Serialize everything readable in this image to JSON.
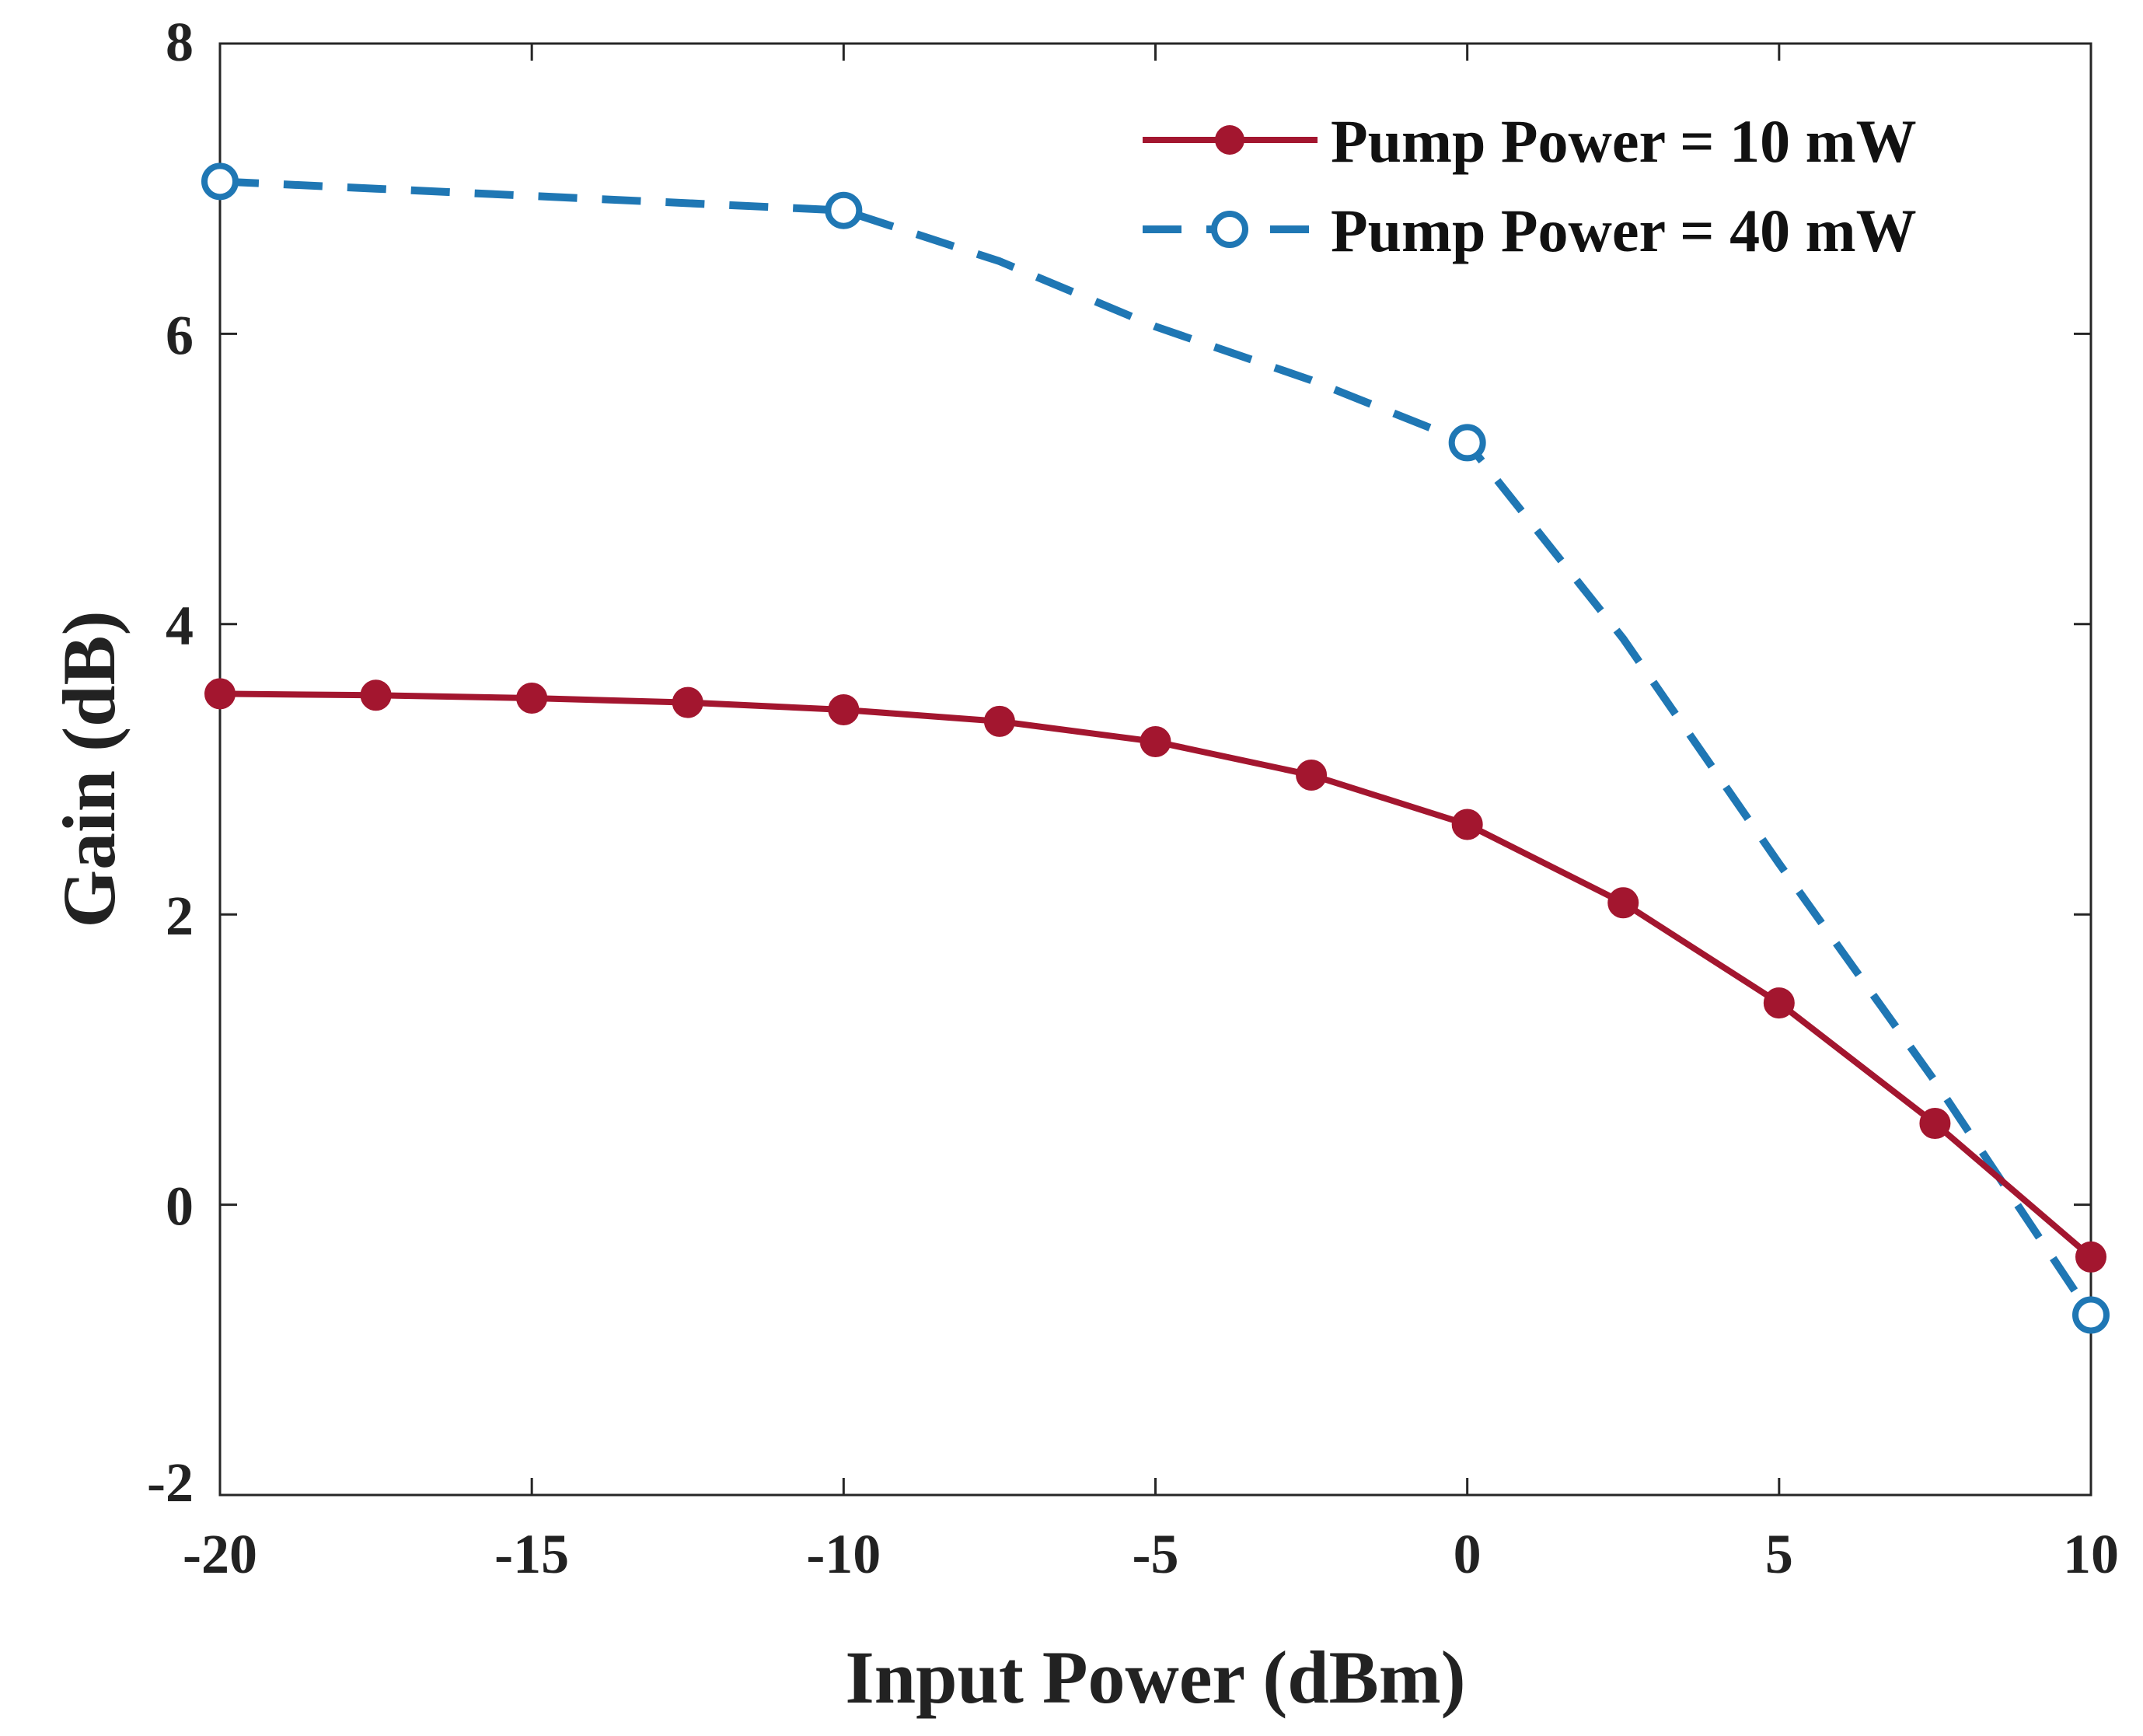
{
  "chart_data": {
    "type": "line",
    "xlabel": "Input Power (dBm)",
    "ylabel": "Gain (dB)",
    "xlim": [
      -20,
      10
    ],
    "ylim": [
      -2,
      8
    ],
    "xticks": [
      -20,
      -15,
      -10,
      -5,
      0,
      5,
      10
    ],
    "yticks": [
      -2,
      0,
      2,
      4,
      6,
      8
    ],
    "xtick_labels": [
      "-20",
      "-15",
      "-10",
      "-5",
      "0",
      "5",
      "10"
    ],
    "ytick_labels": [
      "-2",
      "0",
      "2",
      "4",
      "6",
      "8"
    ],
    "grid": false,
    "legend_position": "top-right",
    "series": [
      {
        "name": "Pump Power = 10 mW",
        "color": "#A3162F",
        "line_style": "solid",
        "marker": "filled-circle",
        "x": [
          -20,
          -17.5,
          -15,
          -12.5,
          -10,
          -7.5,
          -5,
          -2.5,
          0,
          2.5,
          5,
          7.5,
          10
        ],
        "y": [
          3.52,
          3.51,
          3.49,
          3.46,
          3.41,
          3.33,
          3.19,
          2.96,
          2.62,
          2.08,
          1.39,
          0.56,
          -0.36
        ]
      },
      {
        "name": "Pump Power = 40 mW",
        "color": "#1F77B4",
        "line_style": "dashed",
        "marker": "open-circle",
        "x": [
          -20,
          -10,
          0,
          10
        ],
        "y": [
          7.05,
          6.85,
          5.25,
          -0.76
        ],
        "curve_x": [
          -20,
          -17.5,
          -15,
          -12.5,
          -10,
          -7.5,
          -5,
          -2.5,
          0,
          2.5,
          5,
          7.5,
          10
        ],
        "curve_y": [
          7.05,
          7.0,
          6.95,
          6.9,
          6.85,
          6.5,
          6.05,
          5.68,
          5.25,
          3.9,
          2.35,
          0.85,
          -0.76
        ]
      }
    ]
  }
}
